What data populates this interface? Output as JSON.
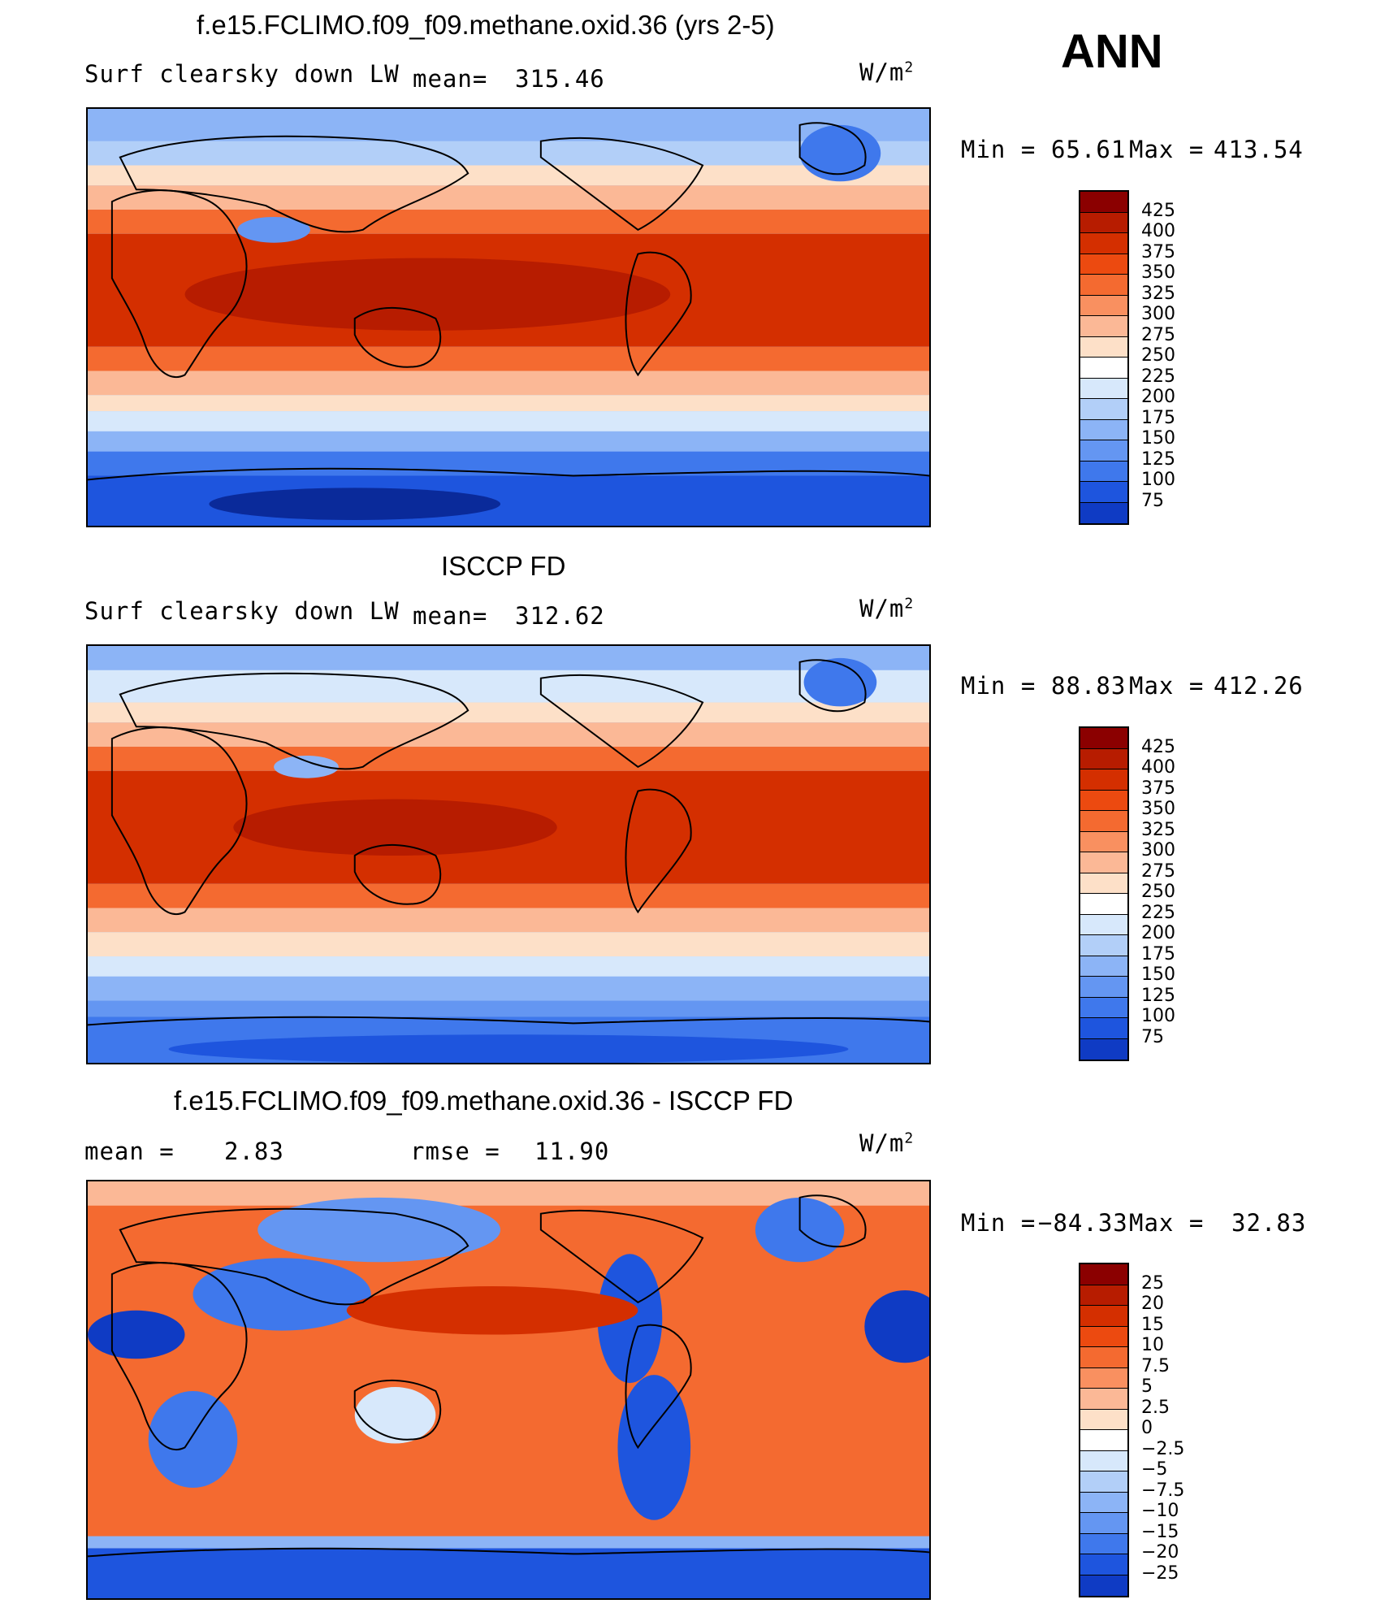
{
  "season": "ANN",
  "units": "W/m",
  "units_sup": "2",
  "panels": [
    {
      "title": "f.e15.FCLIMO.f09_f09.methane.oxid.36 (yrs 2-5)",
      "left_label": "Surf clearsky down LW",
      "stat_label": "mean=",
      "stat_value": "315.46",
      "min_label": "Min =",
      "min_value": "65.61",
      "max_label": "Max =",
      "max_value": "413.54"
    },
    {
      "title": "ISCCP FD",
      "left_label": "Surf clearsky down LW",
      "stat_label": "mean=",
      "stat_value": "312.62",
      "min_label": "Min =",
      "min_value": "88.83",
      "max_label": "Max =",
      "max_value": "412.26"
    },
    {
      "title": "f.e15.FCLIMO.f09_f09.methane.oxid.36 - ISCCP FD",
      "left_label": "mean =",
      "left_value": "2.83",
      "stat_label": "rmse =",
      "stat_value": "11.90",
      "min_label": "Min =",
      "min_value": "−84.33",
      "max_label": "Max =",
      "max_value": "32.83"
    }
  ],
  "colorbar_abs": {
    "labels": [
      "425",
      "400",
      "375",
      "350",
      "325",
      "300",
      "275",
      "250",
      "225",
      "200",
      "175",
      "150",
      "125",
      "100",
      "75"
    ],
    "colors": [
      "#8b0000",
      "#b71c00",
      "#d42f00",
      "#ec4a10",
      "#f46a30",
      "#f99060",
      "#fbb896",
      "#fde0c8",
      "#ffffff",
      "#d7e8fb",
      "#b2cff8",
      "#8cb4f6",
      "#6496f2",
      "#3f78ec",
      "#1e55de",
      "#0f3bc4",
      "#0a2a9a"
    ]
  },
  "colorbar_diff": {
    "labels": [
      "25",
      "20",
      "15",
      "10",
      "7.5",
      "5",
      "2.5",
      "0",
      "−2.5",
      "−5",
      "−7.5",
      "−10",
      "−15",
      "−20",
      "−25"
    ],
    "colors": [
      "#8b0000",
      "#b71c00",
      "#d42f00",
      "#ec4a10",
      "#f46a30",
      "#f99060",
      "#fbb896",
      "#fde0c8",
      "#ffffff",
      "#d7e8fb",
      "#b2cff8",
      "#8cb4f6",
      "#6496f2",
      "#3f78ec",
      "#1e55de",
      "#0f3bc4",
      "#0a2a9a"
    ]
  },
  "colors": {
    "land_line": "#000000",
    "polar_dark": "#0f3bc4",
    "polar": "#3f78ec",
    "mid_cold": "#8cb4f6",
    "mid_cool": "#d7e8fb",
    "temperate": "#fbb896",
    "subtropic": "#f46a30",
    "tropic": "#d42f00",
    "warm_pool": "#b71c00"
  }
}
